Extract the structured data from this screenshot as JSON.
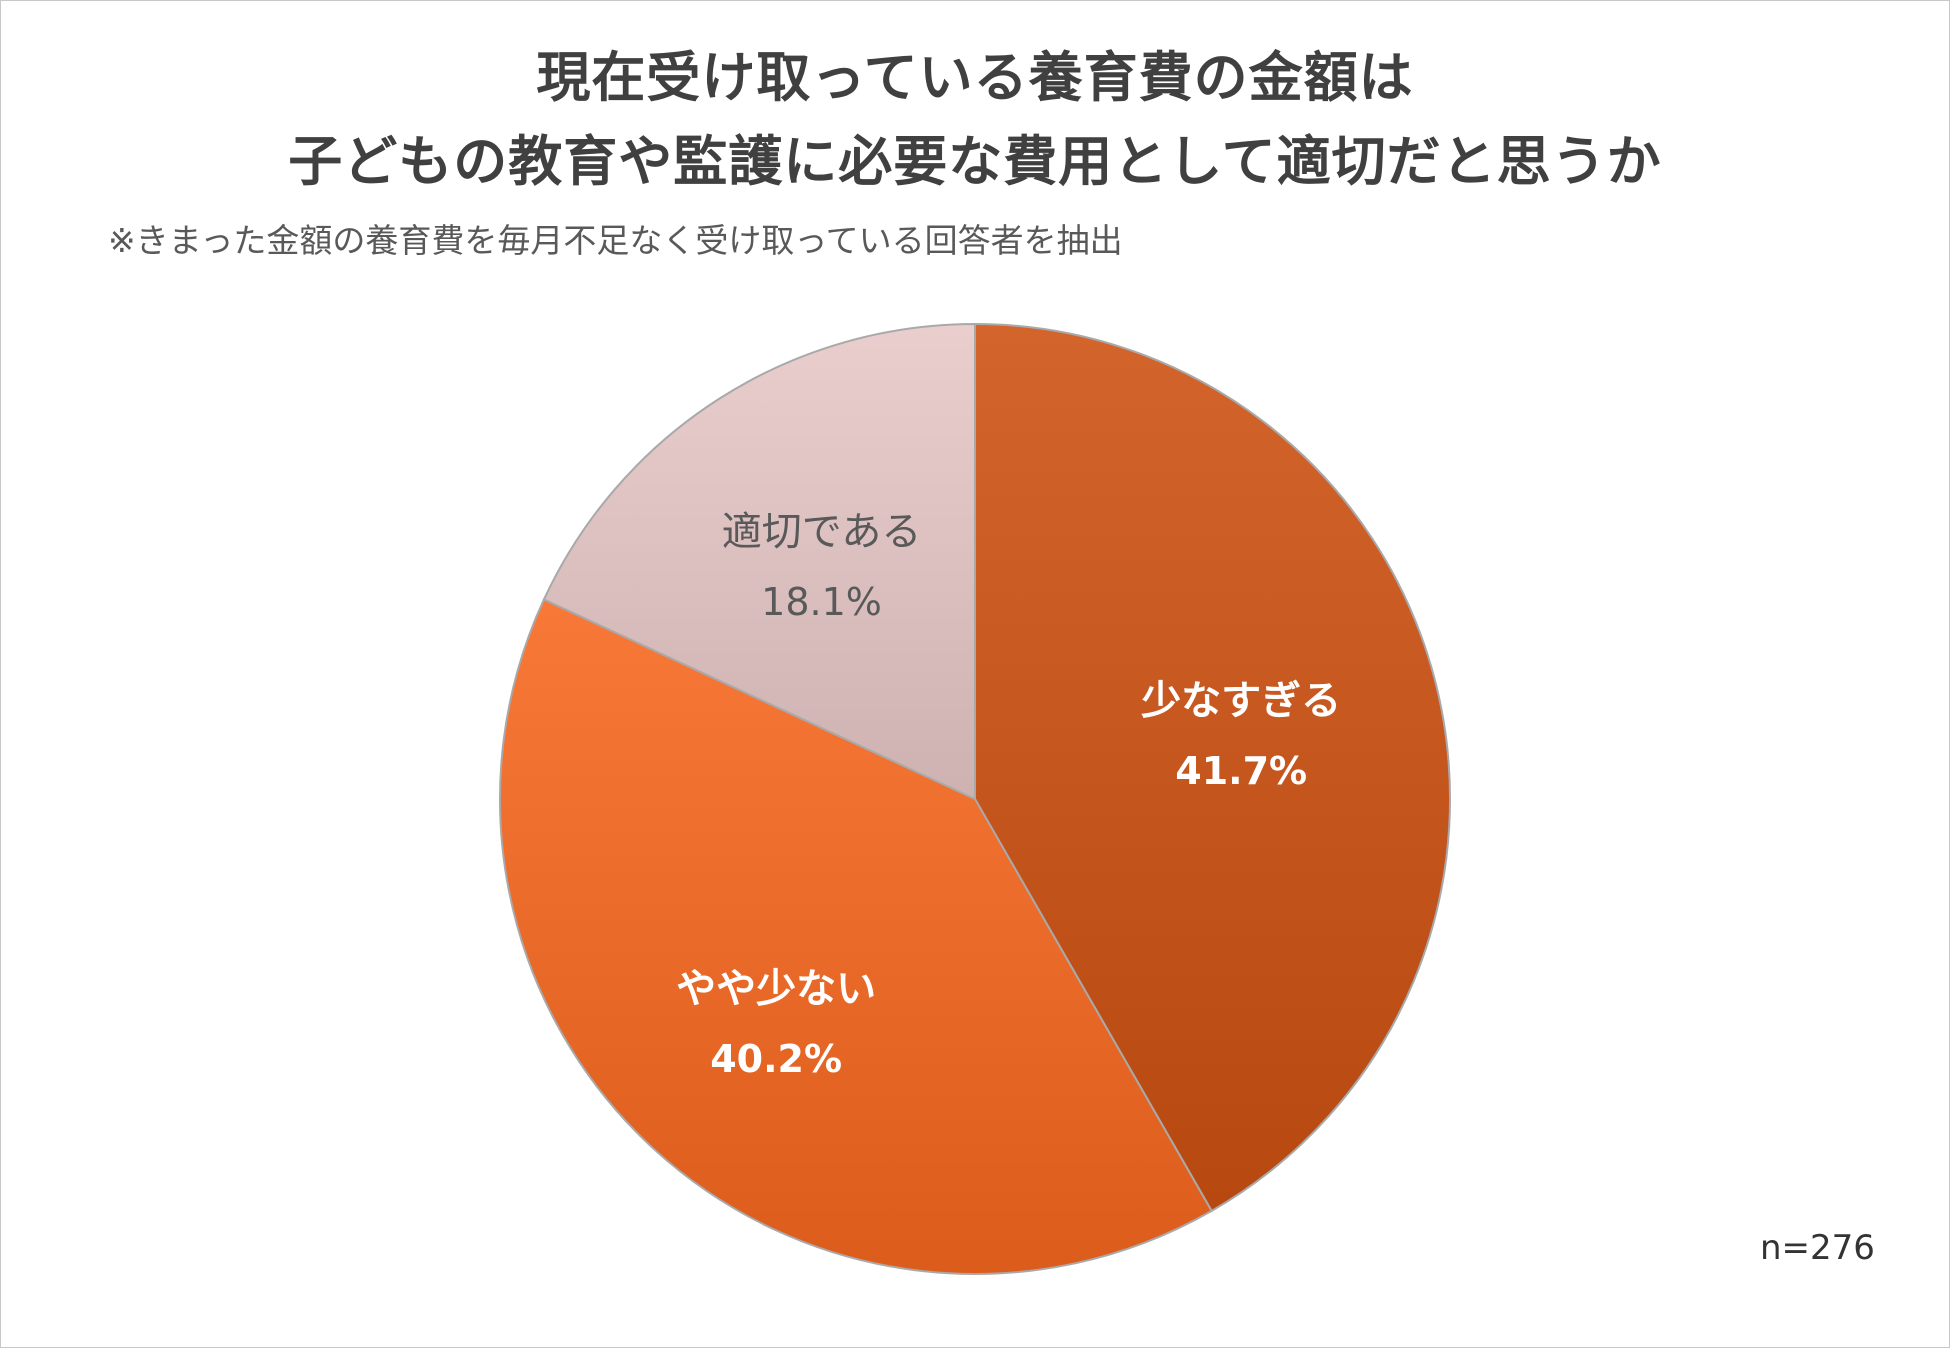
{
  "chart_data": {
    "type": "pie",
    "title_lines": [
      "現在受け取っている養育費の金額は",
      "子どもの教育や監護に必要な費用として適切だと思うか"
    ],
    "subtitle": "※きまった金額の養育費を毎月不足なく受け取っている回答者を抽出",
    "sample_size": "n=276",
    "slices": [
      {
        "label": "少なすぎる",
        "value": 41.7,
        "value_label": "41.7%",
        "color": "#c4561e",
        "label_color": "#ffffff"
      },
      {
        "label": "やや少ない",
        "value": 40.2,
        "value_label": "40.2%",
        "color": "#ea6a2a",
        "label_color": "#ffffff"
      },
      {
        "label": "適切である",
        "value": 18.1,
        "value_label": "18.1%",
        "color": "#dcc0c0",
        "label_color": "#595959"
      }
    ],
    "start_angle": "12 o'clock",
    "direction": "clockwise"
  }
}
